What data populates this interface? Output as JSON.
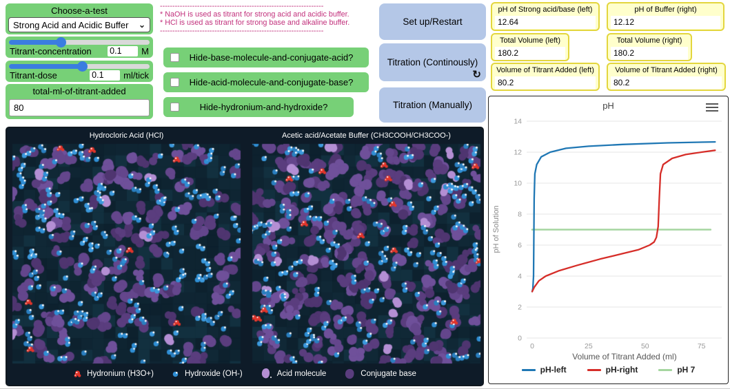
{
  "chooser": {
    "title": "Choose-a-test",
    "selected": "Strong Acid and Acidic Buffer",
    "chevron": "⌄"
  },
  "sliders": [
    {
      "label": "Titrant-concentration",
      "value": "0.1",
      "unit": "M",
      "fill_pct": 37
    },
    {
      "label": "Titrant-dose",
      "value": "0.1",
      "unit": "ml/tick",
      "fill_pct": 52
    }
  ],
  "total_input": {
    "title": "total-ml-of-titrant-added",
    "value": "80"
  },
  "notes": {
    "dash_line": "------------------------------------------------------------------",
    "line1": "* NaOH is used as titrant for strong acid and acidic buffer.",
    "line2": "* HCl is used as titrant for strong base and alkaline buffer."
  },
  "checkboxes": [
    {
      "label": "Hide-base-molecule-and-conjugate-acid?",
      "checked": false
    },
    {
      "label": "Hide-acid-molecule-and-conjugate-base?",
      "checked": false
    },
    {
      "label": "Hide-hydronium-and-hydroxide?",
      "checked": false
    }
  ],
  "buttons": {
    "setup": "Set up/Restart",
    "continuous": "Titration (Continously)",
    "manual": "Titration (Manually)",
    "forever_icon": "↻"
  },
  "monitors": [
    {
      "label": "pH of Strong acid/base (left)",
      "value": "12.64"
    },
    {
      "label": "pH of Buffer (right)",
      "value": "12.12"
    },
    {
      "label": "Total Volume (left)",
      "value": "180.2"
    },
    {
      "label": "Total Volume (right)",
      "value": "180.2"
    },
    {
      "label": "Volume of Titrant Added (left)",
      "value": "80.2"
    },
    {
      "label": "Volume of Titrant Added (right)",
      "value": "80.2"
    }
  ],
  "sim": {
    "bg": "#0e1b28",
    "tile_colors": [
      "#0d212e",
      "#102836",
      "#12303f",
      "#0e2431",
      "#0f2533"
    ],
    "panels": [
      {
        "title": "Hydrocloric Acid (HCl)",
        "purple": 150,
        "light_purple": 8,
        "blue": 165,
        "red": 7,
        "seed": 42
      },
      {
        "title": "Acetic acid/Acetate Buffer (CH3COOH/CH3COO-)",
        "purple": 235,
        "light_purple": 18,
        "blue": 155,
        "red": 14,
        "seed": 1337
      }
    ],
    "palette": {
      "conjugate": [
        "#4f3570",
        "#5a3d7e",
        "#64468c",
        "#6f509a"
      ],
      "acid": "#b48fd4",
      "hydroxide": [
        "#2a7fc0",
        "#2f8ed4",
        "#3b99dd"
      ],
      "hydronium": "#e2352b"
    },
    "legend": [
      {
        "label": "Hydronium (H3O+)",
        "color": "#e2352b"
      },
      {
        "label": "Hydroxide (OH-)",
        "color": "#2f8ed4"
      },
      {
        "label": "Acid molecule",
        "color": "#b48fd4"
      },
      {
        "label": "Conjugate base",
        "color": "#5a3d7e"
      }
    ]
  },
  "chart_data": {
    "type": "line",
    "title": "pH",
    "xlabel": "Volume of Titrant Added (ml)",
    "ylabel": "pH of Solution",
    "xlim": [
      0,
      82
    ],
    "ylim": [
      0,
      14
    ],
    "xticks": [
      0,
      25,
      50,
      75
    ],
    "yticks": [
      0,
      2,
      4,
      6,
      8,
      10,
      12,
      14
    ],
    "grid": "horizontal",
    "legend_position": "bottom",
    "series": [
      {
        "name": "pH-left",
        "color": "#1f77b4",
        "points": [
          [
            0,
            3.0
          ],
          [
            0.3,
            3.2
          ],
          [
            0.6,
            4.0
          ],
          [
            0.9,
            9.0
          ],
          [
            1.2,
            10.6
          ],
          [
            2,
            11.2
          ],
          [
            4,
            11.7
          ],
          [
            8,
            12.0
          ],
          [
            15,
            12.25
          ],
          [
            25,
            12.38
          ],
          [
            40,
            12.5
          ],
          [
            60,
            12.6
          ],
          [
            81,
            12.66
          ]
        ]
      },
      {
        "name": "pH-right",
        "color": "#d62d28",
        "points": [
          [
            0,
            3.0
          ],
          [
            1,
            3.3
          ],
          [
            3,
            3.7
          ],
          [
            6,
            4.0
          ],
          [
            12,
            4.35
          ],
          [
            20,
            4.7
          ],
          [
            30,
            5.1
          ],
          [
            40,
            5.45
          ],
          [
            47,
            5.7
          ],
          [
            52,
            6.0
          ],
          [
            54,
            6.2
          ],
          [
            55,
            6.5
          ],
          [
            55.8,
            7.2
          ],
          [
            56.3,
            9.0
          ],
          [
            56.8,
            10.6
          ],
          [
            58,
            11.2
          ],
          [
            62,
            11.6
          ],
          [
            68,
            11.85
          ],
          [
            75,
            12.0
          ],
          [
            81,
            12.12
          ]
        ]
      },
      {
        "name": "pH 7",
        "color": "#a5d6a0",
        "points": [
          [
            0,
            7
          ],
          [
            79,
            7
          ]
        ]
      }
    ]
  }
}
